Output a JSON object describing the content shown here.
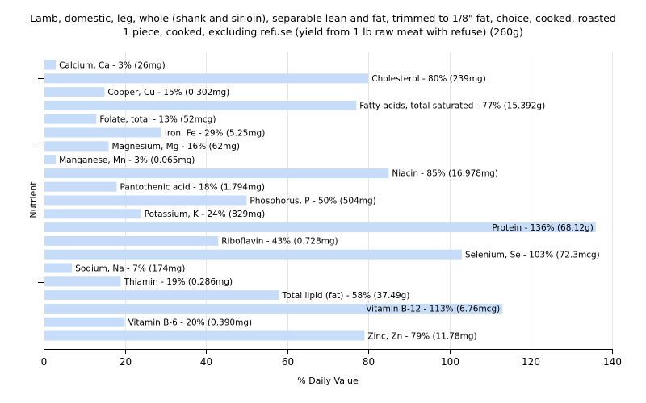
{
  "chart_data": {
    "type": "bar",
    "orientation": "horizontal",
    "title": [
      "Lamb, domestic, leg, whole (shank and sirloin), separable lean and fat, trimmed to 1/8\" fat, choice, cooked, roasted",
      "1 piece, cooked, excluding refuse (yield from 1 lb raw meat with refuse) (260g)"
    ],
    "xlabel": "% Daily Value",
    "ylabel": "Nutrient",
    "xlim": [
      0,
      140
    ],
    "xticks": [
      0,
      20,
      40,
      60,
      80,
      100,
      120,
      140
    ],
    "grid": true,
    "bar_color": "#c6dcf8",
    "categories": [
      "Calcium, Ca",
      "Cholesterol",
      "Copper, Cu",
      "Fatty acids, total saturated",
      "Folate, total",
      "Iron, Fe",
      "Magnesium, Mg",
      "Manganese, Mn",
      "Niacin",
      "Pantothenic acid",
      "Phosphorus, P",
      "Potassium, K",
      "Protein",
      "Riboflavin",
      "Selenium, Se",
      "Sodium, Na",
      "Thiamin",
      "Total lipid (fat)",
      "Vitamin B-12",
      "Vitamin B-6",
      "Zinc, Zn"
    ],
    "values": [
      3,
      80,
      15,
      77,
      13,
      29,
      16,
      3,
      85,
      18,
      50,
      24,
      136,
      43,
      103,
      7,
      19,
      58,
      113,
      20,
      79
    ],
    "labels": [
      "Calcium, Ca - 3% (26mg)",
      "Cholesterol - 80% (239mg)",
      "Copper, Cu - 15% (0.302mg)",
      "Fatty acids, total saturated - 77% (15.392g)",
      "Folate, total - 13% (52mcg)",
      "Iron, Fe - 29% (5.25mg)",
      "Magnesium, Mg - 16% (62mg)",
      "Manganese, Mn - 3% (0.065mg)",
      "Niacin - 85% (16.978mg)",
      "Pantothenic acid - 18% (1.794mg)",
      "Phosphorus, P - 50% (504mg)",
      "Potassium, K - 24% (829mg)",
      "Protein - 136% (68.12g)",
      "Riboflavin - 43% (0.728mg)",
      "Selenium, Se - 103% (72.3mcg)",
      "Sodium, Na - 7% (174mg)",
      "Thiamin - 19% (0.286mg)",
      "Total lipid (fat) - 58% (37.49g)",
      "Vitamin B-12 - 113% (6.76mcg)",
      "Vitamin B-6 - 20% (0.390mg)",
      "Zinc, Zn - 79% (11.78mg)"
    ]
  }
}
